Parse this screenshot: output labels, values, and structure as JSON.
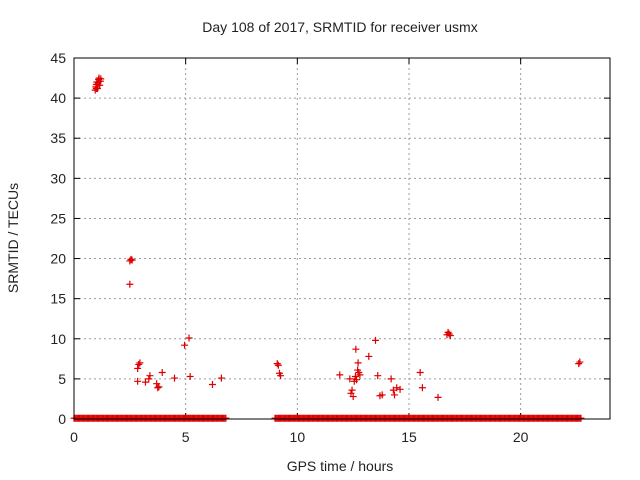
{
  "chart_data": {
    "type": "scatter",
    "title": "Day 108 of 2017, SRMTID for receiver usmx",
    "xlabel": "GPS time / hours",
    "ylabel": "SRMTID / TECUs",
    "xlim": [
      0,
      24
    ],
    "ylim": [
      0,
      45
    ],
    "xticks": [
      0,
      5,
      10,
      15,
      20
    ],
    "yticks": [
      0,
      5,
      10,
      15,
      20,
      25,
      30,
      35,
      40,
      45
    ],
    "grid": true,
    "marker": "+",
    "series": [
      {
        "color": "#dd0000",
        "baseline": {
          "value": 0.1,
          "segments": [
            [
              0.0,
              6.8
            ],
            [
              9.0,
              22.7
            ]
          ]
        },
        "points": [
          [
            0.95,
            41.0
          ],
          [
            0.98,
            41.4
          ],
          [
            1.0,
            41.7
          ],
          [
            1.02,
            42.0
          ],
          [
            1.05,
            41.2
          ],
          [
            1.08,
            41.9
          ],
          [
            1.1,
            42.3
          ],
          [
            1.12,
            42.5
          ],
          [
            1.15,
            41.6
          ],
          [
            1.18,
            42.1
          ],
          [
            1.2,
            42.4
          ],
          [
            1.0,
            41.2
          ],
          [
            2.5,
            19.7
          ],
          [
            2.55,
            19.9
          ],
          [
            2.6,
            19.8
          ],
          [
            2.5,
            16.8
          ],
          [
            2.85,
            6.3
          ],
          [
            2.9,
            6.8
          ],
          [
            2.95,
            7.0
          ],
          [
            2.85,
            4.7
          ],
          [
            3.2,
            4.6
          ],
          [
            3.35,
            5.0
          ],
          [
            3.4,
            5.4
          ],
          [
            3.7,
            4.4
          ],
          [
            3.75,
            3.9
          ],
          [
            3.8,
            4.0
          ],
          [
            3.95,
            5.8
          ],
          [
            4.5,
            5.1
          ],
          [
            4.95,
            9.2
          ],
          [
            5.15,
            10.1
          ],
          [
            5.2,
            5.3
          ],
          [
            6.2,
            4.3
          ],
          [
            6.6,
            5.1
          ],
          [
            9.1,
            6.9
          ],
          [
            9.15,
            6.7
          ],
          [
            9.2,
            5.7
          ],
          [
            9.25,
            5.4
          ],
          [
            11.9,
            5.5
          ],
          [
            12.35,
            5.0
          ],
          [
            12.4,
            3.2
          ],
          [
            12.45,
            3.6
          ],
          [
            12.5,
            2.8
          ],
          [
            12.55,
            4.7
          ],
          [
            12.6,
            5.3
          ],
          [
            12.65,
            4.9
          ],
          [
            12.62,
            8.7
          ],
          [
            12.7,
            6.1
          ],
          [
            12.72,
            7.0
          ],
          [
            12.75,
            5.8
          ],
          [
            12.8,
            5.5
          ],
          [
            13.2,
            7.8
          ],
          [
            13.5,
            9.8
          ],
          [
            13.6,
            5.4
          ],
          [
            13.7,
            2.9
          ],
          [
            13.8,
            3.0
          ],
          [
            14.2,
            5.0
          ],
          [
            14.3,
            3.6
          ],
          [
            14.35,
            3.0
          ],
          [
            14.45,
            3.9
          ],
          [
            14.6,
            3.7
          ],
          [
            15.5,
            5.8
          ],
          [
            15.6,
            3.9
          ],
          [
            16.3,
            2.7
          ],
          [
            16.7,
            10.5
          ],
          [
            16.75,
            10.8
          ],
          [
            16.8,
            10.6
          ],
          [
            16.85,
            10.4
          ],
          [
            22.6,
            6.9
          ],
          [
            22.65,
            7.1
          ]
        ]
      }
    ]
  }
}
